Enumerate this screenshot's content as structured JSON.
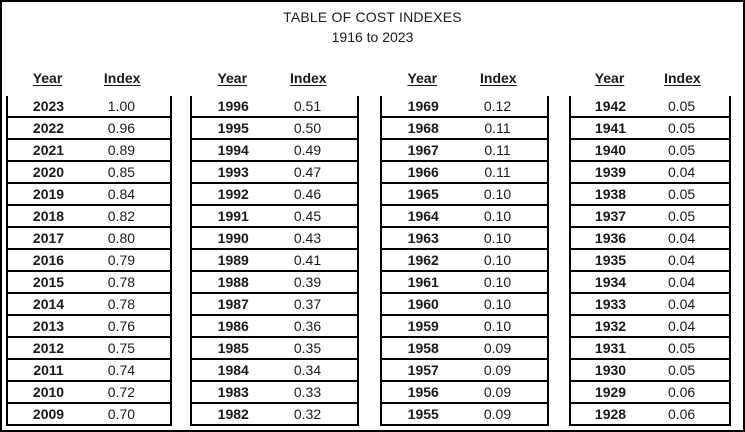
{
  "title": "TABLE OF COST INDEXES",
  "subtitle": "1916 to 2023",
  "columns": {
    "year_label": "Year",
    "index_label": "Index"
  },
  "table": {
    "groups": [
      {
        "rows": [
          {
            "year": "2023",
            "index": "1.00"
          },
          {
            "year": "2022",
            "index": "0.96"
          },
          {
            "year": "2021",
            "index": "0.89"
          },
          {
            "year": "2020",
            "index": "0.85"
          },
          {
            "year": "2019",
            "index": "0.84"
          },
          {
            "year": "2018",
            "index": "0.82"
          },
          {
            "year": "2017",
            "index": "0.80"
          },
          {
            "year": "2016",
            "index": "0.79"
          },
          {
            "year": "2015",
            "index": "0.78"
          },
          {
            "year": "2014",
            "index": "0.78"
          },
          {
            "year": "2013",
            "index": "0.76"
          },
          {
            "year": "2012",
            "index": "0.75"
          },
          {
            "year": "2011",
            "index": "0.74"
          },
          {
            "year": "2010",
            "index": "0.72"
          },
          {
            "year": "2009",
            "index": "0.70"
          }
        ]
      },
      {
        "rows": [
          {
            "year": "1996",
            "index": "0.51"
          },
          {
            "year": "1995",
            "index": "0.50"
          },
          {
            "year": "1994",
            "index": "0.49"
          },
          {
            "year": "1993",
            "index": "0.47"
          },
          {
            "year": "1992",
            "index": "0.46"
          },
          {
            "year": "1991",
            "index": "0.45"
          },
          {
            "year": "1990",
            "index": "0.43"
          },
          {
            "year": "1989",
            "index": "0.41"
          },
          {
            "year": "1988",
            "index": "0.39"
          },
          {
            "year": "1987",
            "index": "0.37"
          },
          {
            "year": "1986",
            "index": "0.36"
          },
          {
            "year": "1985",
            "index": "0.35"
          },
          {
            "year": "1984",
            "index": "0.34"
          },
          {
            "year": "1983",
            "index": "0.33"
          },
          {
            "year": "1982",
            "index": "0.32"
          }
        ]
      },
      {
        "rows": [
          {
            "year": "1969",
            "index": "0.12"
          },
          {
            "year": "1968",
            "index": "0.11"
          },
          {
            "year": "1967",
            "index": "0.11"
          },
          {
            "year": "1966",
            "index": "0.11"
          },
          {
            "year": "1965",
            "index": "0.10"
          },
          {
            "year": "1964",
            "index": "0.10"
          },
          {
            "year": "1963",
            "index": "0.10"
          },
          {
            "year": "1962",
            "index": "0.10"
          },
          {
            "year": "1961",
            "index": "0.10"
          },
          {
            "year": "1960",
            "index": "0.10"
          },
          {
            "year": "1959",
            "index": "0.10"
          },
          {
            "year": "1958",
            "index": "0.09"
          },
          {
            "year": "1957",
            "index": "0.09"
          },
          {
            "year": "1956",
            "index": "0.09"
          },
          {
            "year": "1955",
            "index": "0.09"
          }
        ]
      },
      {
        "rows": [
          {
            "year": "1942",
            "index": "0.05"
          },
          {
            "year": "1941",
            "index": "0.05"
          },
          {
            "year": "1940",
            "index": "0.05"
          },
          {
            "year": "1939",
            "index": "0.04"
          },
          {
            "year": "1938",
            "index": "0.05"
          },
          {
            "year": "1937",
            "index": "0.05"
          },
          {
            "year": "1936",
            "index": "0.04"
          },
          {
            "year": "1935",
            "index": "0.04"
          },
          {
            "year": "1934",
            "index": "0.04"
          },
          {
            "year": "1933",
            "index": "0.04"
          },
          {
            "year": "1932",
            "index": "0.04"
          },
          {
            "year": "1931",
            "index": "0.05"
          },
          {
            "year": "1930",
            "index": "0.05"
          },
          {
            "year": "1929",
            "index": "0.06"
          },
          {
            "year": "1928",
            "index": "0.06"
          }
        ]
      }
    ]
  }
}
